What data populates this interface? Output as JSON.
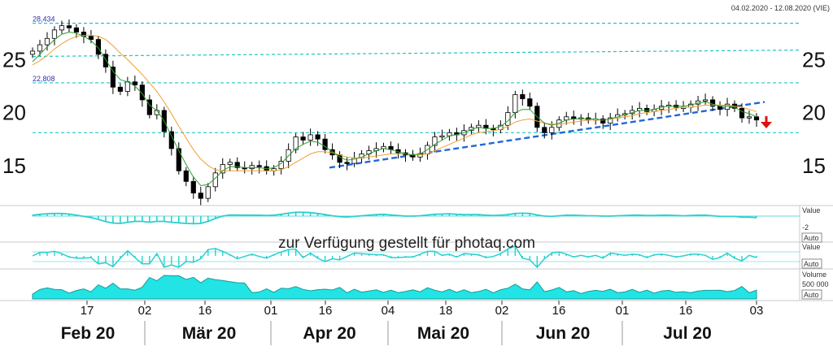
{
  "header": {
    "date_range": "04.02.2020 - 12.08.2020 (VIE)"
  },
  "watermark": "zur Verfügung gestellt für photaq.com",
  "chart_data": {
    "type": "candlestick",
    "y_ticks": [
      "25",
      "20",
      "15"
    ],
    "y_tick_values": [
      25,
      20,
      15
    ],
    "ylim": [
      11.3,
      29.4
    ],
    "x_day_labels": [
      "17",
      "02",
      "16",
      "01",
      "16",
      "04",
      "18",
      "02",
      "16",
      "01",
      "16",
      "03"
    ],
    "x_month_labels": [
      "Feb 20",
      "Mär 20",
      "Apr 20",
      "Mai 20",
      "Jun 20",
      "Jul 20"
    ],
    "levels": [
      {
        "label": "28,434",
        "value": 28.434
      },
      {
        "label": "22,808",
        "value": 22.808
      },
      {
        "label": "",
        "value": 18.1
      }
    ],
    "trend_lines": [
      {
        "from": {
          "day": "2020-04-20",
          "value": 14.8
        },
        "to": {
          "day": "2020-08-03",
          "value": 21.0
        }
      },
      {
        "from": {
          "day": "2020-02-07",
          "value": 25.3
        },
        "to": {
          "day": "2020-08-10",
          "value": 25.9
        }
      }
    ],
    "closes": [
      25.8,
      26.4,
      27.0,
      27.8,
      28.2,
      28.0,
      27.6,
      27.2,
      26.9,
      25.5,
      24.3,
      22.4,
      22.0,
      22.9,
      22.6,
      21.2,
      19.8,
      20.2,
      18.2,
      16.6,
      14.5,
      13.5,
      12.4,
      11.9,
      13.0,
      14.3,
      15.1,
      15.3,
      14.8,
      14.7,
      15.0,
      14.9,
      14.5,
      14.7,
      15.4,
      16.5,
      17.7,
      17.4,
      17.9,
      17.5,
      16.5,
      16.0,
      15.3,
      15.2,
      15.7,
      16.1,
      16.4,
      16.6,
      16.8,
      16.5,
      16.2,
      16.0,
      15.8,
      16.1,
      16.9,
      17.7,
      17.8,
      18.1,
      17.9,
      18.3,
      18.6,
      18.8,
      18.5,
      18.4,
      18.8,
      20.0,
      21.7,
      21.3,
      20.6,
      18.6,
      18.1,
      18.6,
      19.3,
      19.6,
      19.4,
      19.5,
      19.3,
      19.4,
      19.0,
      19.5,
      19.8,
      19.9,
      20.2,
      20.4,
      20.1,
      20.3,
      20.6,
      20.7,
      20.5,
      20.5,
      20.8,
      21.1,
      21.2,
      20.6,
      20.3,
      20.8,
      20.4,
      19.5,
      19.6,
      19.3
    ],
    "ma_fast": [
      24.8,
      25.5,
      26.2,
      26.9,
      27.4,
      27.6,
      27.5,
      27.2,
      26.8,
      26.1,
      25.0,
      23.9,
      23.1,
      22.9,
      22.5,
      21.8,
      20.7,
      20.2,
      19.2,
      17.8,
      16.4,
      15.1,
      13.9,
      13.1,
      13.2,
      13.8,
      14.5,
      14.9,
      14.9,
      14.8,
      14.8,
      14.8,
      14.7,
      14.8,
      15.2,
      15.9,
      16.6,
      17.0,
      17.3,
      17.2,
      16.8,
      16.3,
      15.8,
      15.5,
      15.6,
      15.8,
      16.1,
      16.4,
      16.6,
      16.5,
      16.3,
      16.1,
      16.0,
      16.1,
      16.5,
      17.0,
      17.4,
      17.8,
      17.9,
      18.1,
      18.4,
      18.6,
      18.5,
      18.5,
      18.7,
      19.2,
      20.0,
      20.3,
      20.3,
      19.6,
      19.0,
      18.8,
      19.0,
      19.3,
      19.4,
      19.4,
      19.4,
      19.4,
      19.3,
      19.4,
      19.6,
      19.8,
      20.0,
      20.2,
      20.2,
      20.3,
      20.5,
      20.6,
      20.6,
      20.6,
      20.7,
      20.9,
      21.0,
      20.8,
      20.6,
      20.6,
      20.5,
      20.1,
      19.9,
      19.6
    ],
    "ma_slow": [
      24.5,
      24.9,
      25.4,
      26.0,
      26.5,
      26.9,
      27.2,
      27.3,
      27.3,
      27.2,
      26.9,
      26.3,
      25.6,
      25.0,
      24.3,
      23.6,
      22.8,
      22.0,
      21.0,
      19.9,
      18.7,
      17.6,
      16.5,
      15.6,
      15.0,
      14.6,
      14.5,
      14.5,
      14.5,
      14.5,
      14.5,
      14.5,
      14.5,
      14.5,
      14.6,
      14.9,
      15.3,
      15.7,
      16.1,
      16.3,
      16.3,
      16.2,
      16.0,
      15.8,
      15.7,
      15.7,
      15.8,
      15.9,
      16.0,
      16.1,
      16.1,
      16.1,
      16.0,
      16.0,
      16.1,
      16.4,
      16.7,
      17.0,
      17.3,
      17.6,
      17.9,
      18.1,
      18.2,
      18.3,
      18.4,
      18.7,
      19.1,
      19.3,
      19.4,
      19.2,
      19.0,
      18.9,
      18.9,
      19.0,
      19.1,
      19.2,
      19.3,
      19.3,
      19.3,
      19.4,
      19.5,
      19.6,
      19.7,
      19.9,
      20.0,
      20.1,
      20.2,
      20.3,
      20.4,
      20.5,
      20.5,
      20.6,
      20.7,
      20.7,
      20.7,
      20.7,
      20.6,
      20.5,
      20.3,
      20.1
    ],
    "signal_arrow": "down",
    "sub_panels": [
      {
        "name": "macd",
        "value_label": "Value",
        "tick_label": "-2",
        "auto_label": "Auto"
      },
      {
        "name": "oscillator",
        "value_label": "Value",
        "auto_label": "Auto"
      },
      {
        "name": "volume",
        "value_label": "Volume",
        "tick_label": "500 000",
        "auto_label": "Auto"
      }
    ],
    "colors": {
      "candle_up": "#ffffff",
      "candle_down": "#000000",
      "ma_fast": "#2e9e2e",
      "ma_slow": "#f0a030",
      "level_line": "#22c4c4",
      "trend_line": "#2266dd",
      "indicator": "#2ccfcf",
      "volume_fill": "#22e4e4",
      "arrow": "#dd1111"
    }
  }
}
